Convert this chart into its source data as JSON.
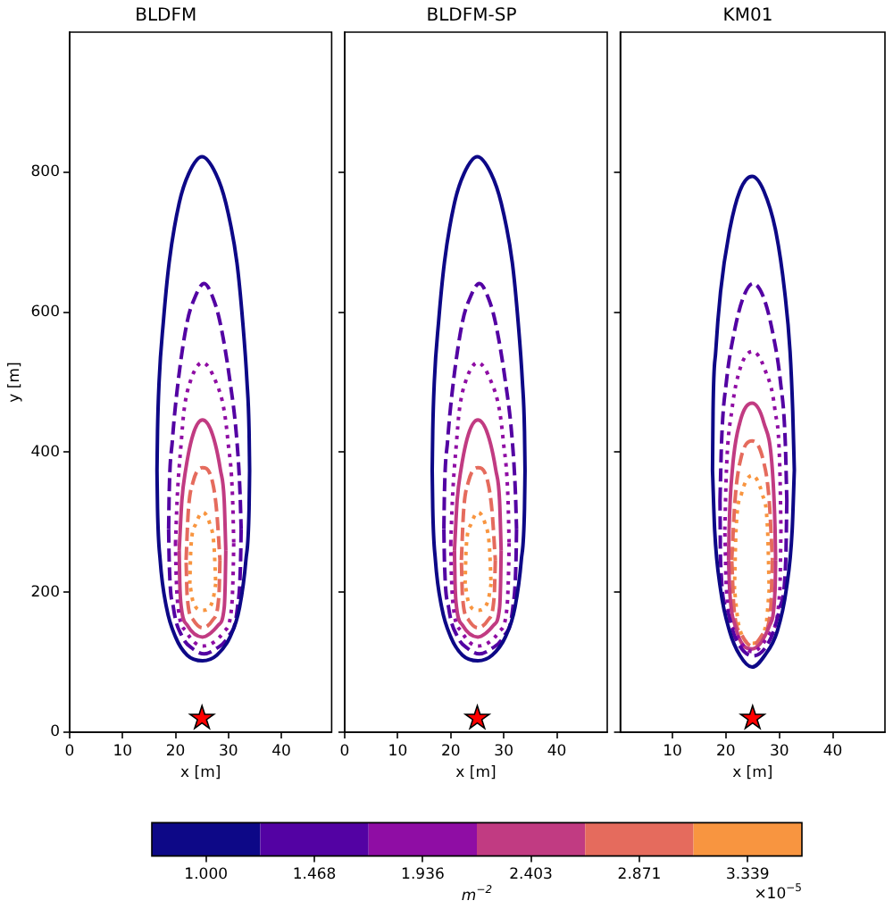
{
  "chart_data": [
    {
      "type": "line",
      "title": "BLDFM",
      "xlabel": "x [m]",
      "ylabel": "y [m]",
      "xlim": [
        0,
        49.5
      ],
      "ylim": [
        0,
        1000
      ],
      "xticks": [
        0,
        10,
        20,
        30,
        40
      ],
      "yticks": [
        0,
        200,
        400,
        600,
        800
      ],
      "clim": [
        0.766,
        3.573
      ],
      "cticks": [
        {
          "value": 1,
          "label": "1.000"
        },
        1.468,
        1.936,
        2.403,
        2.871,
        3.339
      ],
      "clabel": "m$^{−2}$",
      "annotations": [
        "×10$^{−5}$"
      ],
      "series": [
        {
          "color": "#0d0887",
          "line_style": "solid",
          "x": [
            16.5,
            16.6,
            16.9,
            17.7,
            18.8,
            20.7,
            22.5,
            25.0,
            27.6,
            29.5,
            31.6,
            32.7,
            33.5,
            33.9,
            34.0,
            null,
            34.0,
            33.9,
            33.3,
            32.1,
            30.3,
            27.8,
            25.1,
            22.2,
            20.0,
            18.3,
            17.1,
            16.6,
            16.5
          ],
          "values": [
            374,
            430,
            501,
            586,
            671,
            756,
            798,
            822,
            798,
            756,
            671,
            586,
            501,
            430,
            374,
            null,
            374,
            320,
            246,
            178,
            136,
            110,
            102,
            110,
            136,
            178,
            246,
            320,
            374
          ]
        },
        {
          "color": "#5302a3",
          "line_style": "dashed",
          "x": [
            18.7,
            18.8,
            19.4,
            20.5,
            22.2,
            23.6,
            25.4,
            27.1,
            28.4,
            30.3,
            31.6,
            32.2,
            32.4,
            null,
            32.4,
            32.3,
            31.7,
            29.9,
            27.6,
            25.4,
            23.3,
            21.3,
            19.6,
            18.8,
            18.7
          ],
          "values": [
            290,
            340,
            416,
            501,
            586,
            620,
            641,
            620,
            586,
            501,
            416,
            340,
            290,
            null,
            290,
            246,
            178,
            136,
            119,
            112,
            119,
            136,
            178,
            246,
            290
          ]
        },
        {
          "color": "#8f0da4",
          "line_style": "dotted",
          "x": [
            20.0,
            20.3,
            21.1,
            21.6,
            22.8,
            25.1,
            27.6,
            29.2,
            29.9,
            30.8,
            31.0,
            null,
            31.0,
            30.9,
            30.6,
            29.2,
            25.1,
            22.0,
            20.5,
            20.1,
            20.0
          ],
          "values": [
            270,
            331,
            416,
            459,
            501,
            528,
            501,
            459,
            416,
            331,
            270,
            null,
            270,
            230,
            178,
            144,
            123,
            144,
            178,
            230,
            270
          ]
        },
        {
          "color": "#c13b82",
          "line_style": "solid",
          "x": [
            20.7,
            21.2,
            21.9,
            23.3,
            25.1,
            27.0,
            28.5,
            29.2,
            29.5,
            null,
            29.5,
            29.4,
            29.2,
            28.1,
            25.1,
            22.2,
            21.1,
            20.8,
            20.7
          ],
          "values": [
            260,
            331,
            374,
            425,
            446,
            425,
            374,
            331,
            260,
            null,
            260,
            215,
            178,
            153,
            136,
            153,
            178,
            215,
            260
          ]
        },
        {
          "color": "#e56b5d",
          "line_style": "dashed",
          "x": [
            22.0,
            22.4,
            23.3,
            25.1,
            27.0,
            27.8,
            28.4,
            null,
            28.4,
            28.2,
            27.1,
            25.1,
            23.3,
            22.2,
            22.0
          ],
          "values": [
            246,
            314,
            357,
            378,
            357,
            314,
            246,
            null,
            246,
            195,
            161,
            149,
            161,
            195,
            246
          ]
        },
        {
          "color": "#f89540",
          "line_style": "dotted",
          "x": [
            22.7,
            22.9,
            23.8,
            25.1,
            26.5,
            27.3,
            27.6,
            null,
            27.6,
            27.0,
            25.1,
            23.3,
            22.7
          ],
          "values": [
            212,
            263,
            297,
            314,
            297,
            263,
            212,
            null,
            212,
            187,
            174,
            187,
            212
          ]
        },
        {
          "type": "scatter",
          "color": "#ff0000",
          "marker": "star",
          "x": [
            25
          ],
          "values": [
            20
          ]
        }
      ]
    },
    {
      "type": "line",
      "title": "BLDFM-SP",
      "xlabel": "x [m]",
      "xlim": [
        0,
        49.5
      ],
      "ylim": [
        0,
        1000
      ],
      "xticks": [
        0,
        10,
        20,
        30,
        40
      ],
      "yticks": [
        0,
        200,
        400,
        600,
        800
      ],
      "tick_labels": "x",
      "series": [
        {
          "color": "#0d0887",
          "line_style": "solid",
          "x": [
            16.5,
            16.6,
            16.9,
            17.7,
            18.8,
            20.7,
            22.5,
            25.0,
            27.6,
            29.5,
            31.6,
            32.7,
            33.5,
            33.9,
            34.0,
            null,
            34.0,
            33.9,
            33.3,
            32.1,
            30.3,
            27.8,
            25.1,
            22.2,
            20.0,
            18.3,
            17.1,
            16.6,
            16.5
          ],
          "values": [
            374,
            430,
            501,
            586,
            671,
            756,
            798,
            822,
            798,
            756,
            671,
            586,
            501,
            430,
            374,
            null,
            374,
            320,
            246,
            178,
            136,
            110,
            102,
            110,
            136,
            178,
            246,
            320,
            374
          ]
        },
        {
          "color": "#5302a3",
          "line_style": "dashed",
          "x": [
            18.7,
            18.8,
            19.4,
            20.5,
            22.2,
            23.6,
            25.4,
            27.1,
            28.4,
            30.3,
            31.6,
            32.2,
            32.4,
            null,
            32.4,
            32.3,
            31.7,
            29.9,
            27.6,
            25.4,
            23.3,
            21.3,
            19.6,
            18.8,
            18.7
          ],
          "values": [
            290,
            340,
            416,
            501,
            586,
            620,
            641,
            620,
            586,
            501,
            416,
            340,
            290,
            null,
            290,
            246,
            178,
            136,
            119,
            112,
            119,
            136,
            178,
            246,
            290
          ]
        },
        {
          "color": "#8f0da4",
          "line_style": "dotted",
          "x": [
            20.0,
            20.3,
            21.1,
            21.6,
            22.8,
            25.1,
            27.6,
            29.2,
            29.9,
            30.8,
            31.0,
            null,
            31.0,
            30.9,
            30.6,
            29.2,
            25.1,
            22.0,
            20.5,
            20.1,
            20.0
          ],
          "values": [
            270,
            331,
            416,
            459,
            501,
            528,
            501,
            459,
            416,
            331,
            270,
            null,
            270,
            230,
            178,
            144,
            123,
            144,
            178,
            230,
            270
          ]
        },
        {
          "color": "#c13b82",
          "line_style": "solid",
          "x": [
            20.7,
            21.2,
            21.9,
            23.3,
            25.1,
            27.0,
            28.5,
            29.2,
            29.5,
            null,
            29.5,
            29.4,
            29.2,
            28.1,
            25.1,
            22.2,
            21.1,
            20.8,
            20.7
          ],
          "values": [
            260,
            331,
            374,
            425,
            446,
            425,
            374,
            331,
            260,
            null,
            260,
            215,
            178,
            153,
            136,
            153,
            178,
            215,
            260
          ]
        },
        {
          "color": "#e56b5d",
          "line_style": "dashed",
          "x": [
            22.0,
            22.4,
            23.3,
            25.1,
            27.0,
            27.8,
            28.4,
            null,
            28.4,
            28.2,
            27.1,
            25.1,
            23.3,
            22.2,
            22.0
          ],
          "values": [
            246,
            314,
            357,
            378,
            357,
            314,
            246,
            null,
            246,
            195,
            161,
            149,
            161,
            195,
            246
          ]
        },
        {
          "color": "#f89540",
          "line_style": "dotted",
          "x": [
            22.7,
            22.9,
            23.8,
            25.1,
            26.5,
            27.3,
            27.6,
            null,
            27.6,
            27.0,
            25.1,
            23.3,
            22.7
          ],
          "values": [
            212,
            263,
            297,
            314,
            297,
            263,
            212,
            null,
            212,
            187,
            174,
            187,
            212
          ]
        },
        {
          "type": "scatter",
          "color": "#ff0000",
          "marker": "star",
          "x": [
            25
          ],
          "values": [
            20
          ]
        }
      ]
    },
    {
      "type": "line",
      "title": "KM01",
      "xlabel": "x [m]",
      "xlim": [
        0.25,
        49.75
      ],
      "ylim": [
        0,
        1000
      ],
      "xticks": [
        10,
        20,
        30,
        40
      ],
      "yticks": [
        0,
        200,
        400,
        600,
        800
      ],
      "tick_labels": "x",
      "series": [
        {
          "color": "#0d0887",
          "line_style": "solid",
          "x": [
            17.5,
            17.6,
            18.1,
            19.0,
            20.6,
            22.6,
            24.9,
            27.1,
            29.4,
            31.0,
            32.0,
            32.5,
            32.8,
            null,
            32.8,
            32.4,
            31.3,
            29.6,
            27.3,
            24.9,
            22.6,
            20.7,
            19.0,
            17.9,
            17.5
          ],
          "values": [
            374,
            459,
            544,
            629,
            713,
            773,
            794,
            773,
            713,
            629,
            544,
            459,
            374,
            null,
            374,
            289,
            204,
            144,
            110,
            93,
            110,
            144,
            204,
            289,
            374
          ]
        },
        {
          "color": "#5302a3",
          "line_style": "dashed",
          "x": [
            18.9,
            19.2,
            20.1,
            21.5,
            23.2,
            25.1,
            27.1,
            28.8,
            30.2,
            31.1,
            31.4,
            null,
            31.4,
            31.2,
            30.1,
            28.5,
            25.1,
            21.7,
            20.1,
            19.0,
            18.9
          ],
          "values": [
            331,
            416,
            501,
            569,
            620,
            641,
            620,
            569,
            501,
            416,
            331,
            null,
            331,
            246,
            178,
            136,
            109,
            136,
            178,
            246,
            331
          ]
        },
        {
          "color": "#8f0da4",
          "line_style": "dotted",
          "x": [
            19.8,
            20.1,
            21.1,
            22.6,
            25.0,
            27.3,
            29.2,
            30.1,
            30.3,
            null,
            30.3,
            30.1,
            28.5,
            25.0,
            21.7,
            20.1,
            19.8
          ],
          "values": [
            289,
            374,
            459,
            518,
            544,
            518,
            459,
            374,
            289,
            null,
            289,
            204,
            144,
            115,
            144,
            204,
            289
          ]
        },
        {
          "color": "#c13b82",
          "line_style": "solid",
          "x": [
            20.5,
            20.6,
            21.2,
            22.6,
            24.9,
            27.1,
            28.7,
            29.2,
            29.3,
            null,
            29.3,
            29.2,
            28.2,
            24.9,
            21.7,
            20.7,
            20.5
          ],
          "values": [
            246,
            289,
            374,
            442,
            470,
            442,
            374,
            289,
            246,
            null,
            246,
            204,
            153,
            119,
            153,
            204,
            246
          ]
        },
        {
          "color": "#e56b5d",
          "line_style": "dashed",
          "x": [
            21.1,
            21.7,
            22.8,
            24.9,
            26.9,
            28.1,
            28.7,
            null,
            28.7,
            28.4,
            26.9,
            24.9,
            22.9,
            21.5,
            21.1
          ],
          "values": [
            246,
            331,
            391,
            416,
            391,
            331,
            246,
            null,
            246,
            178,
            140,
            123,
            140,
            178,
            246
          ]
        },
        {
          "color": "#f89540",
          "line_style": "dotted",
          "x": [
            21.6,
            21.9,
            22.9,
            24.9,
            26.8,
            27.8,
            28.1,
            null,
            28.1,
            27.5,
            24.9,
            22.4,
            21.6
          ],
          "values": [
            204,
            289,
            340,
            367,
            340,
            289,
            204,
            null,
            204,
            153,
            127,
            153,
            204
          ]
        },
        {
          "type": "scatter",
          "color": "#ff0000",
          "marker": "star",
          "x": [
            25
          ],
          "values": [
            20
          ]
        }
      ]
    }
  ]
}
